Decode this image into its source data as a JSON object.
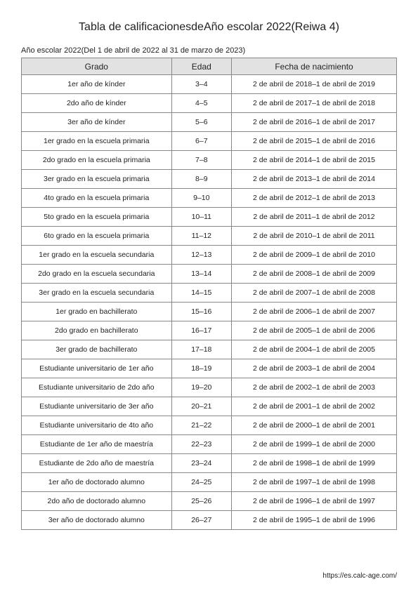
{
  "title": "Tabla de calificacionesdeAño escolar 2022(Reiwa 4)",
  "subtitle": "Año escolar 2022(Del 1 de abril de 2022 al 31 de marzo de 2023)",
  "columns": [
    "Grado",
    "Edad",
    "Fecha de nacimiento"
  ],
  "rows": [
    [
      "1er año de kínder",
      "3–4",
      "2 de abril de 2018–1 de abril de 2019"
    ],
    [
      "2do año de kínder",
      "4–5",
      "2 de abril de 2017–1 de abril de 2018"
    ],
    [
      "3er año de kínder",
      "5–6",
      "2 de abril de 2016–1 de abril de 2017"
    ],
    [
      "1er grado en la escuela primaria",
      "6–7",
      "2 de abril de 2015–1 de abril de 2016"
    ],
    [
      "2do grado en la escuela primaria",
      "7–8",
      "2 de abril de 2014–1 de abril de 2015"
    ],
    [
      "3er grado en la escuela primaria",
      "8–9",
      "2 de abril de 2013–1 de abril de 2014"
    ],
    [
      "4to grado en la escuela primaria",
      "9–10",
      "2 de abril de 2012–1 de abril de 2013"
    ],
    [
      "5to grado en la escuela primaria",
      "10–11",
      "2 de abril de 2011–1 de abril de 2012"
    ],
    [
      "6to grado en la escuela primaria",
      "11–12",
      "2 de abril de 2010–1 de abril de 2011"
    ],
    [
      "1er grado en la escuela secundaria",
      "12–13",
      "2 de abril de 2009–1 de abril de 2010"
    ],
    [
      "2do grado en la escuela secundaria",
      "13–14",
      "2 de abril de 2008–1 de abril de 2009"
    ],
    [
      "3er grado en la escuela secundaria",
      "14–15",
      "2 de abril de 2007–1 de abril de 2008"
    ],
    [
      "1er grado en bachillerato",
      "15–16",
      "2 de abril de 2006–1 de abril de 2007"
    ],
    [
      "2do grado en bachillerato",
      "16–17",
      "2 de abril de 2005–1 de abril de 2006"
    ],
    [
      "3er grado de bachillerato",
      "17–18",
      "2 de abril de 2004–1 de abril de 2005"
    ],
    [
      "Estudiante universitario de 1er año",
      "18–19",
      "2 de abril de 2003–1 de abril de 2004"
    ],
    [
      "Estudiante universitario de 2do año",
      "19–20",
      "2 de abril de 2002–1 de abril de 2003"
    ],
    [
      "Estudiante universitario de 3er año",
      "20–21",
      "2 de abril de 2001–1 de abril de 2002"
    ],
    [
      "Estudiante universitario de 4to año",
      "21–22",
      "2 de abril de 2000–1 de abril de 2001"
    ],
    [
      "Estudiante de 1er año de maestría",
      "22–23",
      "2 de abril de 1999–1 de abril de 2000"
    ],
    [
      "Estudiante de 2do año de maestría",
      "23–24",
      "2 de abril de 1998–1 de abril de 1999"
    ],
    [
      "1er año de doctorado alumno",
      "24–25",
      "2 de abril de 1997–1 de abril de 1998"
    ],
    [
      "2do año de doctorado alumno",
      "25–26",
      "2 de abril de 1996–1 de abril de 1997"
    ],
    [
      "3er año de doctorado alumno",
      "26–27",
      "2 de abril de 1995–1 de abril de 1996"
    ]
  ],
  "footer": "https://es.calc-age.com/"
}
